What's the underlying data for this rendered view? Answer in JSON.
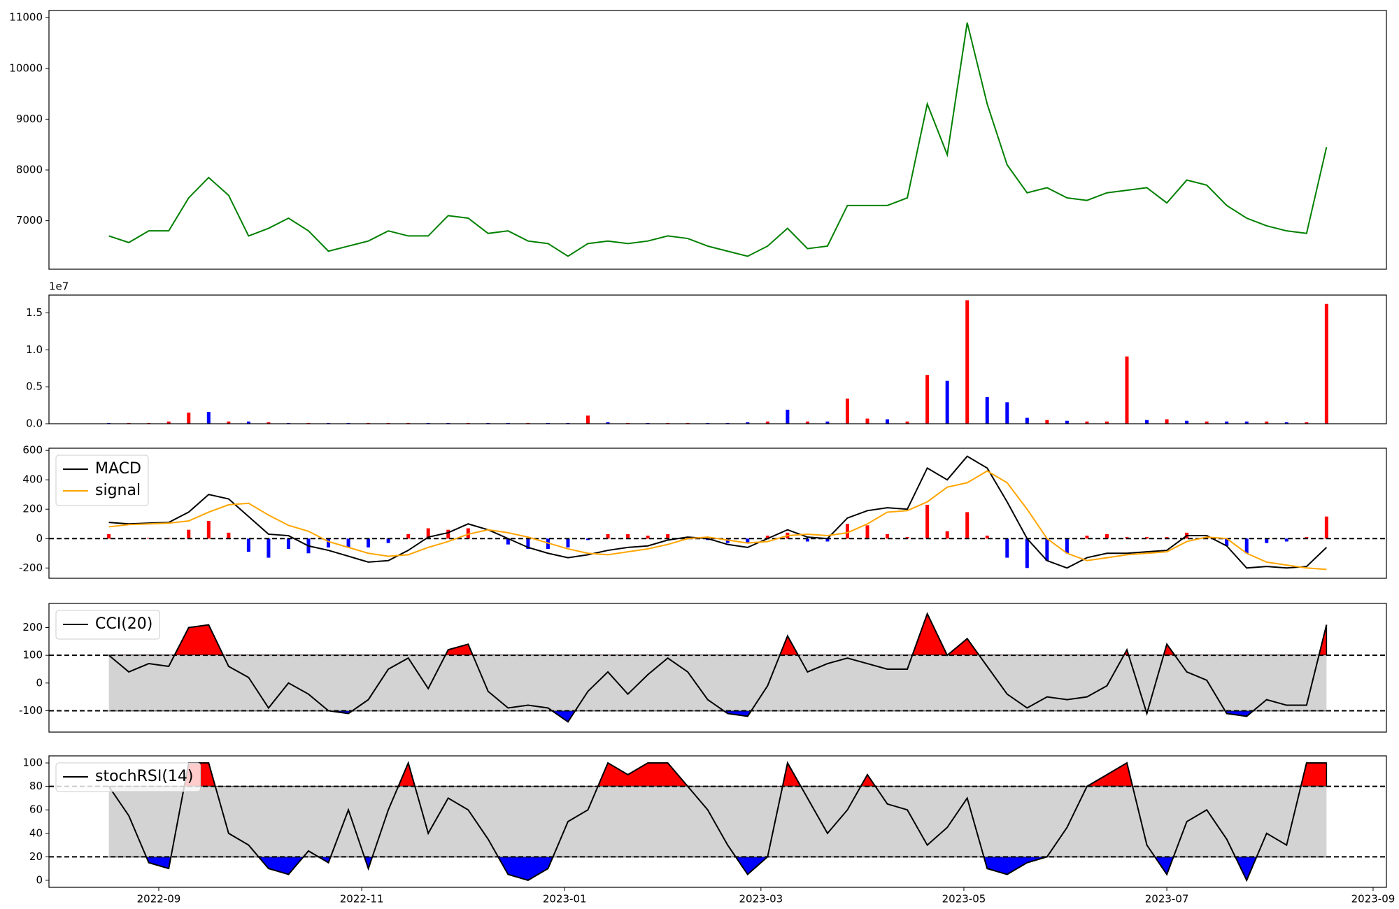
{
  "chart_data": [
    {
      "type": "line",
      "xlim": [
        -33,
        369
      ],
      "ylim": [
        6045,
        11140
      ],
      "yticks": [
        7000,
        8000,
        9000,
        10000,
        11000
      ],
      "x": [
        -15,
        -9,
        -3,
        3,
        9,
        15,
        21,
        27,
        33,
        39,
        45,
        51,
        57,
        63,
        69,
        75,
        81,
        87,
        93,
        99,
        105,
        111,
        117,
        123,
        129,
        135,
        141,
        147,
        153,
        159,
        165,
        171,
        177,
        183,
        189,
        195,
        201,
        207,
        213,
        219,
        225,
        231,
        237,
        243,
        249,
        255,
        261,
        267,
        273,
        279,
        285,
        291,
        297,
        303,
        309,
        315,
        321,
        327,
        333,
        339,
        345,
        351
      ],
      "series": [
        {
          "color": "green",
          "values": [
            6700,
            6570,
            6800,
            6800,
            7450,
            7850,
            7500,
            6700,
            6850,
            7050,
            6800,
            6400,
            6500,
            6600,
            6800,
            6700,
            6700,
            7100,
            7050,
            6750,
            6800,
            6600,
            6550,
            6300,
            6550,
            6600,
            6550,
            6600,
            6700,
            6650,
            6500,
            6400,
            6300,
            6500,
            6850,
            6450,
            6500,
            7300,
            7300,
            7300,
            7450,
            9300,
            8300,
            10900,
            9300,
            8100,
            7550,
            7650,
            7450,
            7400,
            7550,
            7600,
            7650,
            7350,
            7800,
            7700,
            7300,
            7050,
            6900,
            6800,
            6750,
            8450
          ]
        }
      ]
    },
    {
      "type": "bar",
      "xlim": [
        -33,
        369
      ],
      "ylim": [
        0,
        1.74
      ],
      "y_offset_label": "1e7",
      "yticks": [
        {
          "value": 0,
          "label": "0.0"
        },
        0.5,
        {
          "value": 1,
          "label": "1.0"
        },
        1.5
      ],
      "x": [
        -15,
        -9,
        -3,
        3,
        9,
        15,
        21,
        27,
        33,
        39,
        45,
        51,
        57,
        63,
        69,
        75,
        81,
        87,
        93,
        99,
        105,
        111,
        117,
        123,
        129,
        135,
        141,
        147,
        153,
        159,
        165,
        171,
        177,
        183,
        189,
        195,
        201,
        207,
        213,
        219,
        225,
        231,
        237,
        243,
        249,
        255,
        261,
        267,
        273,
        279,
        285,
        291,
        297,
        303,
        309,
        315,
        321,
        327,
        333,
        339,
        345,
        351
      ],
      "values": [
        0.01,
        0.01,
        0.01,
        0.03,
        0.15,
        0.16,
        0.03,
        0.03,
        0.02,
        0.01,
        0.01,
        0.01,
        0.01,
        0.01,
        0.01,
        0.01,
        0.01,
        0.01,
        0.01,
        0.01,
        0.01,
        0.01,
        0.01,
        0.01,
        0.11,
        0.02,
        0.01,
        0.01,
        0.01,
        0.01,
        0.01,
        0.01,
        0.02,
        0.03,
        0.19,
        0.03,
        0.03,
        0.34,
        0.07,
        0.06,
        0.03,
        0.66,
        0.58,
        1.67,
        0.36,
        0.29,
        0.08,
        0.05,
        0.04,
        0.03,
        0.03,
        0.91,
        0.05,
        0.06,
        0.04,
        0.03,
        0.03,
        0.03,
        0.03,
        0.02,
        0.02,
        1.62
      ],
      "colors": [
        "blue",
        "red",
        "red",
        "red",
        "red",
        "blue",
        "red",
        "blue",
        "red",
        "blue",
        "red",
        "blue",
        "blue",
        "red",
        "red",
        "red",
        "blue",
        "blue",
        "red",
        "blue",
        "blue",
        "red",
        "blue",
        "blue",
        "red",
        "blue",
        "red",
        "blue",
        "red",
        "red",
        "blue",
        "blue",
        "blue",
        "red",
        "blue",
        "red",
        "blue",
        "red",
        "red",
        "blue",
        "red",
        "red",
        "blue",
        "red",
        "blue",
        "blue",
        "blue",
        "red",
        "blue",
        "red",
        "red",
        "red",
        "blue",
        "red",
        "blue",
        "red",
        "blue",
        "blue",
        "red",
        "blue",
        "red",
        "red"
      ]
    },
    {
      "type": "macd",
      "xlim": [
        -33,
        369
      ],
      "ylim": [
        -270,
        615
      ],
      "yticks": [
        -200,
        0,
        200,
        400,
        600
      ],
      "hline": 0,
      "legend": "upper left",
      "x": [
        -15,
        -9,
        -3,
        3,
        9,
        15,
        21,
        27,
        33,
        39,
        45,
        51,
        57,
        63,
        69,
        75,
        81,
        87,
        93,
        99,
        105,
        111,
        117,
        123,
        129,
        135,
        141,
        147,
        153,
        159,
        165,
        171,
        177,
        183,
        189,
        195,
        201,
        207,
        213,
        219,
        225,
        231,
        237,
        243,
        249,
        255,
        261,
        267,
        273,
        279,
        285,
        291,
        297,
        303,
        309,
        315,
        321,
        327,
        333,
        339,
        345,
        351
      ],
      "series": [
        {
          "name": "MACD",
          "color": "black",
          "values": [
            110,
            100,
            105,
            110,
            180,
            300,
            270,
            150,
            30,
            20,
            -50,
            -80,
            -120,
            -160,
            -150,
            -80,
            10,
            40,
            100,
            60,
            0,
            -60,
            -100,
            -130,
            -110,
            -80,
            -60,
            -50,
            -10,
            10,
            0,
            -40,
            -60,
            0,
            60,
            10,
            0,
            140,
            190,
            210,
            200,
            480,
            400,
            560,
            480,
            250,
            0,
            -150,
            -200,
            -130,
            -100,
            -100,
            -90,
            -80,
            20,
            20,
            -50,
            -200,
            -190,
            -200,
            -190,
            -60
          ]
        },
        {
          "name": "signal",
          "color": "orange",
          "values": [
            80,
            95,
            100,
            105,
            120,
            180,
            230,
            240,
            160,
            90,
            50,
            -20,
            -60,
            -100,
            -120,
            -110,
            -60,
            -20,
            30,
            60,
            40,
            10,
            -30,
            -70,
            -100,
            -110,
            -90,
            -70,
            -40,
            0,
            10,
            -10,
            -30,
            -20,
            20,
            30,
            20,
            40,
            100,
            180,
            190,
            250,
            350,
            380,
            460,
            380,
            200,
            0,
            -100,
            -150,
            -130,
            -110,
            -100,
            -90,
            -20,
            10,
            0,
            -100,
            -160,
            -180,
            -200,
            -210
          ]
        }
      ],
      "histogram": {
        "up_color": "red",
        "down_color": "blue",
        "values": [
          30,
          5,
          5,
          5,
          60,
          120,
          40,
          -90,
          -130,
          -70,
          -100,
          -60,
          -60,
          -60,
          -30,
          30,
          70,
          60,
          70,
          0,
          -40,
          -70,
          -70,
          -60,
          -10,
          30,
          30,
          20,
          30,
          10,
          -10,
          -30,
          -30,
          20,
          40,
          -20,
          -20,
          100,
          90,
          30,
          10,
          230,
          50,
          180,
          20,
          -130,
          -200,
          -150,
          -100,
          20,
          30,
          10,
          10,
          10,
          40,
          10,
          -50,
          -100,
          -30,
          -20,
          10,
          150
        ]
      }
    },
    {
      "type": "oscillator",
      "xlim": [
        -33,
        369
      ],
      "ylim": [
        -177,
        287
      ],
      "yticks": [
        -100,
        0,
        100,
        200
      ],
      "levels": [
        -100,
        100
      ],
      "legend": "upper left",
      "band_color": "lightgray",
      "upper_color": "red",
      "lower_color": "blue",
      "x": [
        -15,
        -9,
        -3,
        3,
        9,
        15,
        21,
        27,
        33,
        39,
        45,
        51,
        57,
        63,
        69,
        75,
        81,
        87,
        93,
        99,
        105,
        111,
        117,
        123,
        129,
        135,
        141,
        147,
        153,
        159,
        165,
        171,
        177,
        183,
        189,
        195,
        201,
        207,
        213,
        219,
        225,
        231,
        237,
        243,
        249,
        255,
        261,
        267,
        273,
        279,
        285,
        291,
        297,
        303,
        309,
        315,
        321,
        327,
        333,
        339,
        345,
        351
      ],
      "series": [
        {
          "name": "CCI(20)",
          "color": "black",
          "values": [
            100,
            40,
            70,
            60,
            200,
            210,
            60,
            20,
            -90,
            0,
            -40,
            -100,
            -110,
            -60,
            50,
            90,
            -20,
            120,
            140,
            -30,
            -90,
            -80,
            -90,
            -140,
            -30,
            40,
            -40,
            30,
            90,
            40,
            -60,
            -110,
            -120,
            -10,
            170,
            40,
            70,
            90,
            70,
            50,
            50,
            250,
            100,
            160,
            60,
            -40,
            -90,
            -50,
            -60,
            -50,
            -10,
            120,
            -110,
            140,
            40,
            10,
            -110,
            -120,
            -60,
            -80,
            -80,
            210
          ]
        }
      ]
    },
    {
      "type": "oscillator",
      "xlim": [
        -33,
        369
      ],
      "ylim": [
        -6,
        106
      ],
      "yticks": [
        0,
        20,
        40,
        60,
        80,
        100
      ],
      "levels": [
        20,
        80
      ],
      "legend": "upper left",
      "band_color": "lightgray",
      "upper_color": "red",
      "lower_color": "blue",
      "xticks": [
        {
          "value": 0,
          "label": "2022-09"
        },
        {
          "value": 61,
          "label": "2022-11"
        },
        {
          "value": 122,
          "label": "2023-01"
        },
        {
          "value": 181,
          "label": "2023-03"
        },
        {
          "value": 242,
          "label": "2023-05"
        },
        {
          "value": 303,
          "label": "2023-07"
        },
        {
          "value": 365,
          "label": "2023-09"
        }
      ],
      "x": [
        -15,
        -9,
        -3,
        3,
        9,
        15,
        21,
        27,
        33,
        39,
        45,
        51,
        57,
        63,
        69,
        75,
        81,
        87,
        93,
        99,
        105,
        111,
        117,
        123,
        129,
        135,
        141,
        147,
        153,
        159,
        165,
        171,
        177,
        183,
        189,
        195,
        201,
        207,
        213,
        219,
        225,
        231,
        237,
        243,
        249,
        255,
        261,
        267,
        273,
        279,
        285,
        291,
        297,
        303,
        309,
        315,
        321,
        327,
        333,
        339,
        345,
        351
      ],
      "series": [
        {
          "name": "stochRSI(14)",
          "color": "black",
          "values": [
            80,
            55,
            15,
            10,
            100,
            100,
            40,
            30,
            10,
            5,
            25,
            15,
            60,
            10,
            60,
            100,
            40,
            70,
            60,
            35,
            5,
            0,
            10,
            50,
            60,
            100,
            90,
            100,
            100,
            80,
            60,
            30,
            5,
            20,
            100,
            70,
            40,
            60,
            90,
            65,
            60,
            30,
            45,
            70,
            10,
            5,
            15,
            20,
            45,
            80,
            90,
            100,
            30,
            5,
            50,
            60,
            35,
            0,
            40,
            30,
            100,
            100
          ]
        }
      ]
    }
  ]
}
